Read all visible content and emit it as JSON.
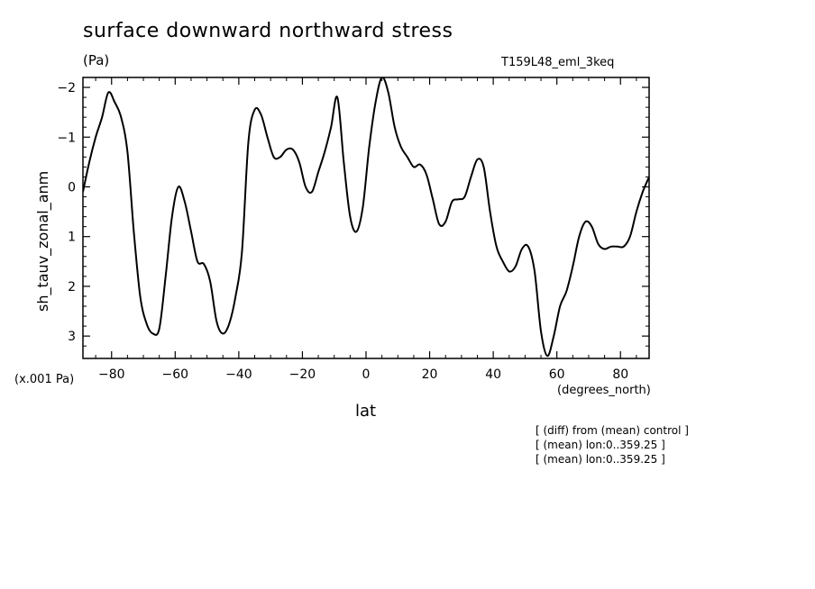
{
  "chart_data": {
    "type": "line",
    "title": "surface downward northward stress",
    "units": "(Pa)",
    "run_id": "T159L48_eml_3keq",
    "ylabel": "sh_tauv_zonal_anm",
    "scale_note": "(x.001 Pa)",
    "xlabel": "lat",
    "x_units": "(degrees_north)",
    "xlim": [
      -89,
      89
    ],
    "ylim": [
      3.45,
      -2.2
    ],
    "y_inverted": true,
    "x_ticks": [
      -80,
      -60,
      -40,
      -20,
      0,
      20,
      40,
      60,
      80
    ],
    "x_tick_labels": [
      "−80",
      "−60",
      "−40",
      "−20",
      "0",
      "20",
      "40",
      "60",
      "80"
    ],
    "y_ticks": [
      -2,
      -1,
      0,
      1,
      2,
      3
    ],
    "y_tick_labels": [
      "−2",
      "−1",
      "0",
      "1",
      "2",
      "3"
    ],
    "grid": false,
    "series": [
      {
        "x": [
          -89,
          -87,
          -85,
          -83,
          -81,
          -79,
          -77,
          -75,
          -73,
          -71,
          -69,
          -67,
          -65,
          -63,
          -61,
          -59,
          -57,
          -55,
          -53,
          -51,
          -49,
          -47,
          -45,
          -43,
          -41,
          -39,
          -37,
          -35,
          -33,
          -31,
          -29,
          -27,
          -25,
          -23,
          -21,
          -19,
          -17,
          -15,
          -13,
          -11,
          -9,
          -7,
          -5,
          -3,
          -1,
          1,
          3,
          5,
          7,
          9,
          11,
          13,
          15,
          17,
          19,
          21,
          23,
          25,
          27,
          29,
          31,
          33,
          35,
          37,
          39,
          41,
          43,
          45,
          47,
          49,
          51,
          53,
          55,
          57,
          59,
          61,
          63,
          65,
          67,
          69,
          71,
          73,
          75,
          77,
          79,
          81,
          83,
          85,
          87,
          89
        ],
        "y": [
          0.1,
          -0.5,
          -1.0,
          -1.4,
          -1.9,
          -1.7,
          -1.4,
          -0.7,
          0.9,
          2.2,
          2.75,
          2.95,
          2.85,
          1.8,
          0.6,
          0.0,
          0.3,
          0.9,
          1.5,
          1.55,
          1.9,
          2.7,
          2.95,
          2.75,
          2.2,
          1.3,
          -0.9,
          -1.55,
          -1.45,
          -1.0,
          -0.6,
          -0.6,
          -0.75,
          -0.75,
          -0.5,
          0.0,
          0.1,
          -0.3,
          -0.7,
          -1.2,
          -1.8,
          -0.5,
          0.6,
          0.9,
          0.4,
          -0.8,
          -1.7,
          -2.2,
          -1.9,
          -1.2,
          -0.8,
          -0.6,
          -0.4,
          -0.45,
          -0.25,
          0.25,
          0.75,
          0.7,
          0.3,
          0.25,
          0.2,
          -0.2,
          -0.55,
          -0.4,
          0.5,
          1.2,
          1.5,
          1.7,
          1.6,
          1.25,
          1.2,
          1.7,
          2.9,
          3.4,
          3.0,
          2.4,
          2.1,
          1.6,
          1.0,
          0.7,
          0.8,
          1.15,
          1.25,
          1.2,
          1.2,
          1.2,
          1.0,
          0.5,
          0.1,
          -0.2
        ]
      }
    ]
  },
  "notes": [
    "[ (diff) from (mean) control ]",
    "[ (mean) lon:0..359.25 ]",
    "[ (mean) lon:0..359.25 ]"
  ]
}
